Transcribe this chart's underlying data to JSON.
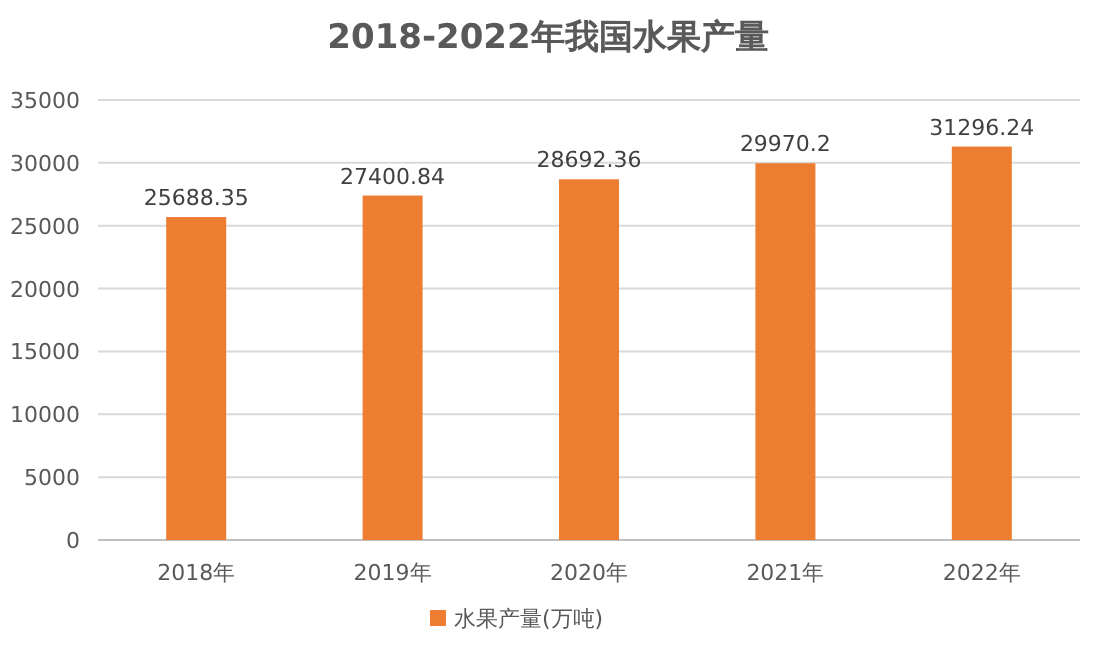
{
  "chart_data": {
    "type": "bar",
    "title": "2018-2022年我国水果产量",
    "categories": [
      "2018年",
      "2019年",
      "2020年",
      "2021年",
      "2022年"
    ],
    "series": [
      {
        "name": "水果产量(万吨)",
        "color": "#ed7d31",
        "values": [
          25688.35,
          27400.84,
          28692.36,
          29970.2,
          31296.24
        ]
      }
    ],
    "ylim": [
      0,
      35000
    ],
    "yticks": [
      0,
      5000,
      10000,
      15000,
      20000,
      25000,
      30000,
      35000
    ],
    "grid": "y",
    "legend": "bottom",
    "data_labels": true
  }
}
